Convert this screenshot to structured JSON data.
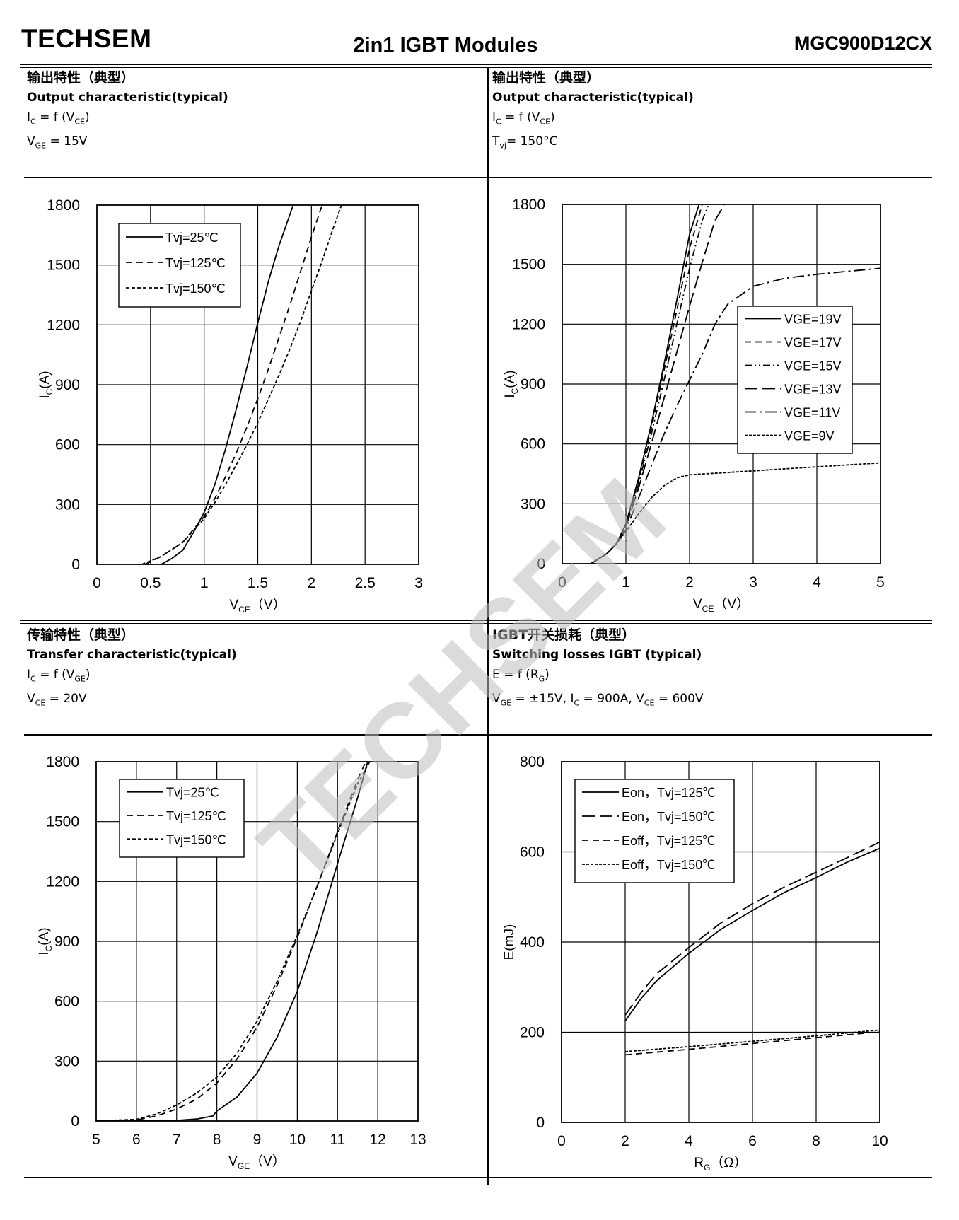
{
  "header": {
    "brand": "TECHSEM",
    "title": "2in1 IGBT Modules",
    "model": "MGC900D12CX"
  },
  "watermark": "TECHSEM",
  "panels": [
    {
      "cn": "输出特性（典型）",
      "en": "Output characteristic(typical)",
      "line1": {
        "a": "I",
        "a_sub": "C",
        "b": " = f (V",
        "b_sub": "CE",
        "c": ")"
      },
      "line2": {
        "a": "V",
        "a_sub": "GE",
        "b": " = 15V",
        "b_sub": "",
        "c": ""
      }
    },
    {
      "cn": "输出特性（典型）",
      "en": "Output characteristic(typical)",
      "line1": {
        "a": "I",
        "a_sub": "C",
        "b": " = f (V",
        "b_sub": "CE",
        "c": ")"
      },
      "line2": {
        "a": "T",
        "a_sub": "vj",
        "b": "= 150°C",
        "b_sub": "",
        "c": ""
      }
    },
    {
      "cn": "传输特性（典型）",
      "en": "Transfer characteristic(typical)",
      "line1": {
        "a": "I",
        "a_sub": "C",
        "b": " = f (V",
        "b_sub": "GE",
        "c": ")"
      },
      "line2": {
        "a": "V",
        "a_sub": "CE",
        "b": " = 20V",
        "b_sub": "",
        "c": ""
      }
    },
    {
      "cn": "IGBT开关损耗（典型）",
      "en": "Switching losses IGBT (typical)",
      "line1": {
        "a": "E = f (R",
        "a_sub": "G",
        "b": ")",
        "b_sub": "",
        "c": ""
      },
      "line2": {
        "a": "V",
        "a_sub": "GE",
        "b": " = ±15V, I",
        "b_sub": "C",
        "c": " = 900A, V",
        "c_sub": "CE",
        "d": " = 600V"
      }
    }
  ],
  "chart_data": [
    {
      "type": "line",
      "xlabel": "V",
      "xlabel_sub": "CE",
      "xlabel_unit": "（V）",
      "ylabel": "I",
      "ylabel_sub": "C",
      "ylabel_unit": "(A)",
      "xlim": [
        0,
        3
      ],
      "ylim": [
        0,
        1800
      ],
      "xticks": [
        0,
        0.5,
        1,
        1.5,
        2,
        2.5,
        3
      ],
      "yticks": [
        0,
        300,
        600,
        900,
        1200,
        1500,
        1800
      ],
      "grid": true,
      "legend_position": "top-left",
      "series": [
        {
          "name": "Tvj=25℃",
          "dash": "solid",
          "x": [
            0.6,
            0.7,
            0.8,
            0.9,
            1.0,
            1.1,
            1.2,
            1.3,
            1.4,
            1.5,
            1.6,
            1.7,
            1.83
          ],
          "y": [
            0,
            30,
            70,
            160,
            260,
            400,
            580,
            780,
            990,
            1210,
            1420,
            1600,
            1800
          ]
        },
        {
          "name": "Tvj=125℃",
          "dash": "dash",
          "x": [
            0.45,
            0.6,
            0.8,
            1.0,
            1.1,
            1.2,
            1.3,
            1.4,
            1.5,
            1.6,
            1.7,
            1.8,
            1.9,
            2.0,
            2.1
          ],
          "y": [
            0,
            40,
            110,
            240,
            330,
            440,
            560,
            690,
            830,
            980,
            1140,
            1300,
            1470,
            1640,
            1800
          ]
        },
        {
          "name": "Tvj=150℃",
          "dash": "short-dash",
          "x": [
            0.42,
            0.6,
            0.8,
            1.0,
            1.1,
            1.2,
            1.3,
            1.4,
            1.5,
            1.6,
            1.7,
            1.8,
            1.9,
            2.0,
            2.1,
            2.2,
            2.28
          ],
          "y": [
            0,
            40,
            110,
            230,
            310,
            400,
            500,
            600,
            710,
            830,
            950,
            1080,
            1220,
            1370,
            1520,
            1680,
            1800
          ]
        }
      ]
    },
    {
      "type": "line",
      "xlabel": "V",
      "xlabel_sub": "CE",
      "xlabel_unit": "（V）",
      "ylabel": "I",
      "ylabel_sub": "C",
      "ylabel_unit": "(A)",
      "xlim": [
        0,
        5
      ],
      "ylim": [
        0,
        1800
      ],
      "xticks": [
        0,
        1,
        2,
        3,
        4,
        5
      ],
      "yticks": [
        0,
        300,
        600,
        900,
        1200,
        1500,
        1800
      ],
      "grid": true,
      "legend_position": "right",
      "series": [
        {
          "name": "VGE=19V",
          "dash": "solid",
          "x": [
            0.45,
            0.7,
            0.85,
            1.0,
            1.2,
            1.4,
            1.6,
            1.8,
            2.0,
            2.15
          ],
          "y": [
            0,
            50,
            100,
            200,
            430,
            700,
            1000,
            1320,
            1650,
            1800
          ]
        },
        {
          "name": "VGE=17V",
          "dash": "dash",
          "x": [
            0.45,
            0.7,
            0.85,
            1.0,
            1.2,
            1.4,
            1.6,
            1.8,
            2.0,
            2.2
          ],
          "y": [
            0,
            50,
            100,
            195,
            420,
            680,
            970,
            1270,
            1580,
            1800
          ]
        },
        {
          "name": "VGE=15V",
          "dash": "dash-dot-dot",
          "x": [
            0.45,
            0.7,
            0.85,
            1.0,
            1.2,
            1.4,
            1.6,
            1.8,
            2.0,
            2.2,
            2.3
          ],
          "y": [
            0,
            50,
            100,
            190,
            400,
            650,
            920,
            1200,
            1480,
            1720,
            1800
          ]
        },
        {
          "name": "VGE=13V",
          "dash": "long-dash",
          "x": [
            0.45,
            0.7,
            0.85,
            1.0,
            1.2,
            1.4,
            1.6,
            1.8,
            2.0,
            2.2,
            2.4,
            2.55
          ],
          "y": [
            0,
            50,
            100,
            185,
            380,
            600,
            830,
            1060,
            1290,
            1510,
            1720,
            1800
          ]
        },
        {
          "name": "VGE=11V",
          "dash": "dash-dot",
          "x": [
            0.45,
            0.7,
            0.85,
            1.0,
            1.2,
            1.4,
            1.6,
            1.8,
            2.0,
            2.2,
            2.4,
            2.6,
            3.0,
            3.5,
            4.0,
            4.5,
            5.0
          ],
          "y": [
            0,
            50,
            100,
            170,
            330,
            490,
            650,
            790,
            920,
            1050,
            1200,
            1300,
            1390,
            1430,
            1450,
            1465,
            1480
          ]
        },
        {
          "name": "VGE=9V",
          "dash": "fine-dash",
          "x": [
            0.45,
            0.7,
            0.85,
            1.0,
            1.2,
            1.4,
            1.6,
            1.8,
            2.0,
            2.5,
            3.0,
            3.5,
            4.0,
            4.5,
            5.0
          ],
          "y": [
            0,
            50,
            100,
            160,
            250,
            330,
            390,
            430,
            445,
            455,
            465,
            475,
            485,
            495,
            505
          ]
        }
      ]
    },
    {
      "type": "line",
      "xlabel": "V",
      "xlabel_sub": "GE",
      "xlabel_unit": "（V）",
      "ylabel": "I",
      "ylabel_sub": "C",
      "ylabel_unit": "(A)",
      "xlim": [
        5,
        13
      ],
      "ylim": [
        0,
        1800
      ],
      "xticks": [
        5,
        6,
        7,
        8,
        9,
        10,
        11,
        12,
        13
      ],
      "yticks": [
        0,
        300,
        600,
        900,
        1200,
        1500,
        1800
      ],
      "grid": true,
      "legend_position": "top-left",
      "series": [
        {
          "name": "Tvj=25℃",
          "dash": "solid",
          "x": [
            5.0,
            6.0,
            7.0,
            7.5,
            7.9,
            8.0,
            8.5,
            9.0,
            9.5,
            10.0,
            10.5,
            11.0,
            11.5,
            11.75
          ],
          "y": [
            0,
            0,
            3,
            10,
            25,
            50,
            120,
            240,
            420,
            650,
            950,
            1290,
            1620,
            1800
          ]
        },
        {
          "name": "Tvj=125℃",
          "dash": "dash",
          "x": [
            5.0,
            6.0,
            6.5,
            7.0,
            7.5,
            8.0,
            8.5,
            9.0,
            9.5,
            10.0,
            10.5,
            11.0,
            11.5,
            11.7
          ],
          "y": [
            0,
            5,
            25,
            60,
            110,
            190,
            310,
            470,
            680,
            920,
            1180,
            1450,
            1710,
            1800
          ]
        },
        {
          "name": "Tvj=150℃",
          "dash": "short-dash",
          "x": [
            5.0,
            6.0,
            6.5,
            7.0,
            7.5,
            8.0,
            8.5,
            9.0,
            9.5,
            10.0,
            10.5,
            11.0,
            11.5,
            11.8
          ],
          "y": [
            0,
            8,
            35,
            80,
            140,
            220,
            340,
            500,
            700,
            930,
            1180,
            1440,
            1690,
            1800
          ]
        }
      ]
    },
    {
      "type": "line",
      "xlabel": "R",
      "xlabel_sub": "G",
      "xlabel_unit": "（Ω）",
      "ylabel": "E(mJ)",
      "ylabel_sub": "",
      "ylabel_unit": "",
      "xlim": [
        0,
        10
      ],
      "ylim": [
        0,
        800
      ],
      "xticks": [
        0,
        2,
        4,
        6,
        8,
        10
      ],
      "yticks": [
        0,
        200,
        400,
        600,
        800
      ],
      "grid": true,
      "legend_position": "top-left",
      "series": [
        {
          "name": "Eon，Tvj=125℃",
          "dash": "solid",
          "x": [
            2,
            2.5,
            3,
            4,
            5,
            6,
            7,
            8,
            9,
            10
          ],
          "y": [
            225,
            275,
            315,
            375,
            428,
            470,
            510,
            543,
            578,
            608
          ]
        },
        {
          "name": "Eon，Tvj=150℃",
          "dash": "long-dash",
          "x": [
            2,
            2.5,
            3,
            4,
            5,
            6,
            7,
            8,
            9,
            10
          ],
          "y": [
            238,
            288,
            330,
            388,
            442,
            485,
            522,
            555,
            588,
            622
          ]
        },
        {
          "name": "Eoff，Tvj=125℃",
          "dash": "dash",
          "x": [
            2,
            4,
            6,
            8,
            10
          ],
          "y": [
            150,
            162,
            175,
            188,
            201
          ]
        },
        {
          "name": "Eoff，Tvj=150℃",
          "dash": "fine-dash",
          "x": [
            2,
            4,
            6,
            8,
            10
          ],
          "y": [
            157,
            168,
            180,
            192,
            205
          ]
        }
      ]
    }
  ]
}
